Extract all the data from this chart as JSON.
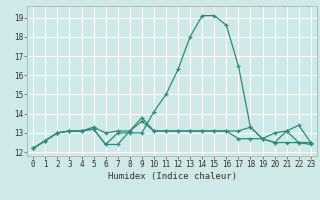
{
  "title": "",
  "xlabel": "Humidex (Indice chaleur)",
  "ylabel": "",
  "bg_color": "#cfe8e8",
  "grid_color": "#ffffff",
  "line_color": "#2e8b7a",
  "xlim": [
    -0.5,
    23.5
  ],
  "ylim": [
    11.8,
    19.6
  ],
  "yticks": [
    12,
    13,
    14,
    15,
    16,
    17,
    18,
    19
  ],
  "xticks": [
    0,
    1,
    2,
    3,
    4,
    5,
    6,
    7,
    8,
    9,
    10,
    11,
    12,
    13,
    14,
    15,
    16,
    17,
    18,
    19,
    20,
    21,
    22,
    23
  ],
  "series": [
    [
      12.2,
      12.6,
      13.0,
      13.1,
      13.1,
      13.2,
      12.4,
      13.0,
      13.0,
      13.0,
      14.1,
      15.0,
      16.3,
      18.0,
      19.1,
      19.1,
      18.6,
      16.5,
      13.3,
      12.7,
      12.5,
      12.5,
      12.5,
      12.4
    ],
    [
      12.2,
      12.6,
      13.0,
      13.1,
      13.1,
      13.3,
      13.0,
      13.1,
      13.1,
      13.8,
      13.1,
      13.1,
      13.1,
      13.1,
      13.1,
      13.1,
      13.1,
      13.1,
      13.3,
      12.7,
      13.0,
      13.1,
      13.4,
      12.5
    ],
    [
      12.2,
      12.6,
      13.0,
      13.1,
      13.1,
      13.2,
      12.4,
      12.4,
      13.1,
      13.6,
      13.1,
      13.1,
      13.1,
      13.1,
      13.1,
      13.1,
      13.1,
      12.7,
      12.7,
      12.7,
      12.5,
      13.1,
      12.5,
      12.5
    ]
  ],
  "tick_labelsize": 5.5,
  "xlabel_fontsize": 6.5
}
